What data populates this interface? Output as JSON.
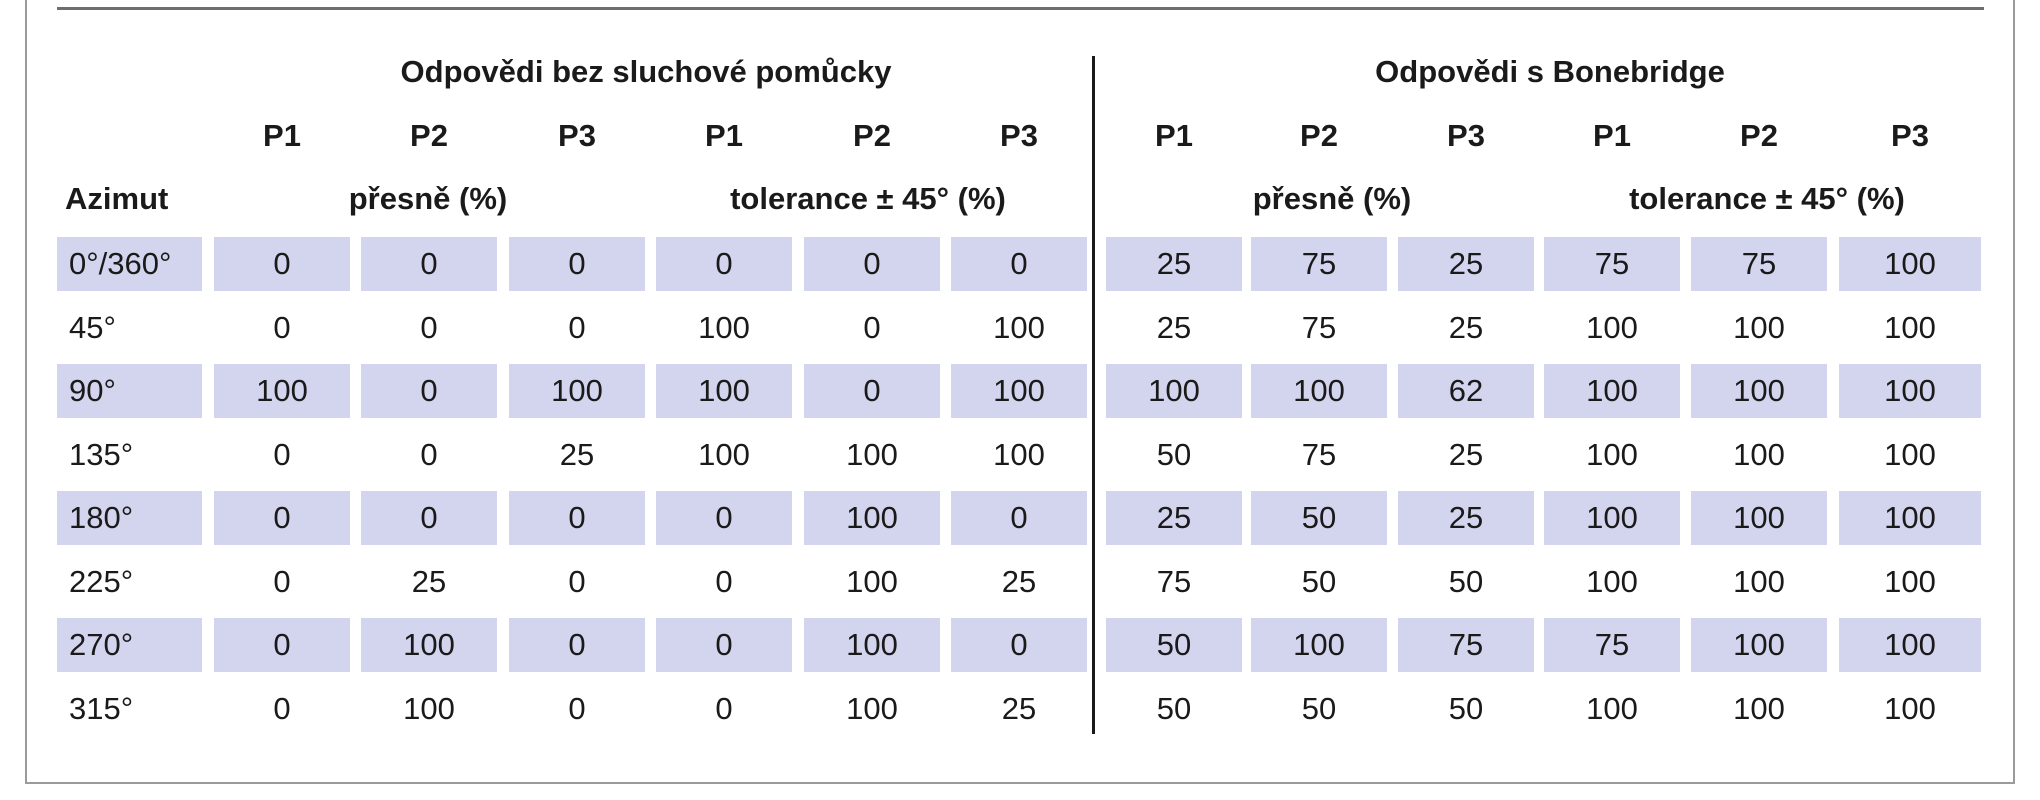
{
  "table": {
    "group_headers": [
      "Odpovědi bez sluchové pomůcky",
      "Odpovědi s Bonebridge"
    ],
    "patient_headers": [
      "P1",
      "P2",
      "P3",
      "P1",
      "P2",
      "P3",
      "P1",
      "P2",
      "P3",
      "P1",
      "P2",
      "P3"
    ],
    "first_column_header": "Azimut",
    "measure_headers": [
      "přesně (%)",
      "tolerance ± 45° (%)",
      "přesně (%)",
      "tolerance ± 45° (%)"
    ],
    "rows": [
      {
        "azimuth": "0°/360°",
        "values": [
          "0",
          "0",
          "0",
          "0",
          "0",
          "0",
          "25",
          "75",
          "25",
          "75",
          "75",
          "100"
        ]
      },
      {
        "azimuth": "45°",
        "values": [
          "0",
          "0",
          "0",
          "100",
          "0",
          "100",
          "25",
          "75",
          "25",
          "100",
          "100",
          "100"
        ]
      },
      {
        "azimuth": "90°",
        "values": [
          "100",
          "0",
          "100",
          "100",
          "0",
          "100",
          "100",
          "100",
          "62",
          "100",
          "100",
          "100"
        ]
      },
      {
        "azimuth": "135°",
        "values": [
          "0",
          "0",
          "25",
          "100",
          "100",
          "100",
          "50",
          "75",
          "25",
          "100",
          "100",
          "100"
        ]
      },
      {
        "azimuth": "180°",
        "values": [
          "0",
          "0",
          "0",
          "0",
          "100",
          "0",
          "25",
          "50",
          "25",
          "100",
          "100",
          "100"
        ]
      },
      {
        "azimuth": "225°",
        "values": [
          "0",
          "25",
          "0",
          "0",
          "100",
          "25",
          "75",
          "50",
          "50",
          "100",
          "100",
          "100"
        ]
      },
      {
        "azimuth": "270°",
        "values": [
          "0",
          "100",
          "0",
          "0",
          "100",
          "0",
          "50",
          "100",
          "75",
          "75",
          "100",
          "100"
        ]
      },
      {
        "azimuth": "315°",
        "values": [
          "0",
          "100",
          "0",
          "0",
          "100",
          "25",
          "50",
          "50",
          "50",
          "100",
          "100",
          "100"
        ]
      }
    ]
  },
  "colors": {
    "row_shade": "#d3d4ee",
    "rule": "#6e6e6e",
    "divider": "#1a1a1a"
  }
}
